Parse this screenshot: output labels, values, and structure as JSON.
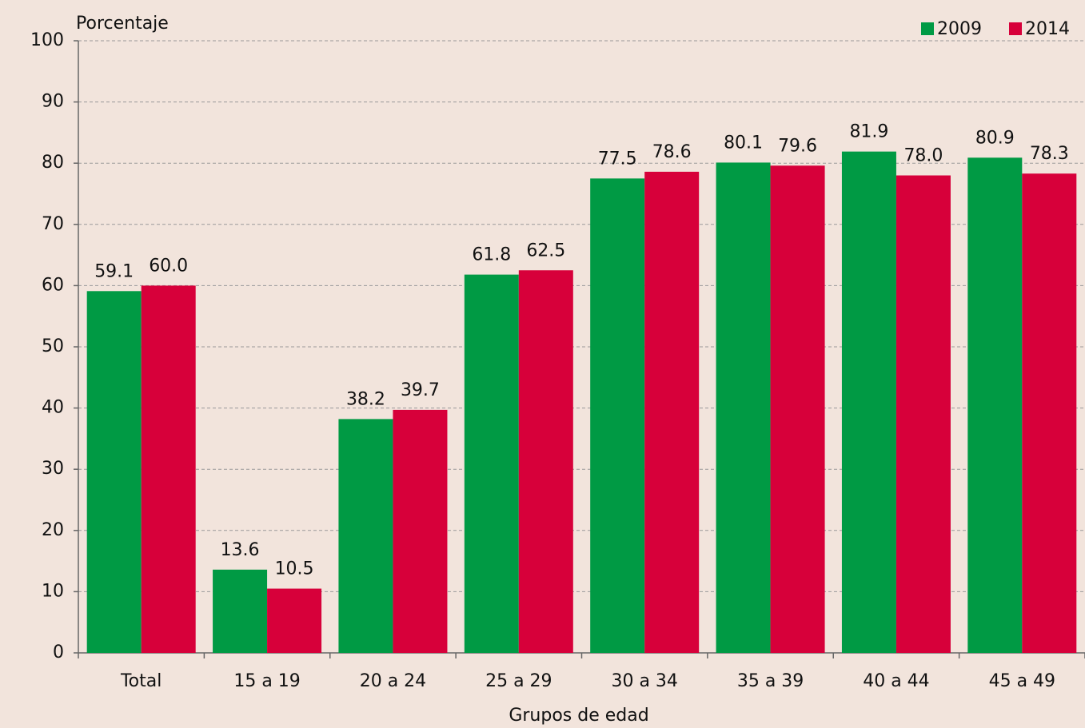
{
  "chart_data": {
    "type": "bar",
    "ylabel": "Porcentaje",
    "xlabel": "Grupos de edad",
    "categories": [
      "Total",
      "15 a 19",
      "20 a 24",
      "25 a 29",
      "30 a 34",
      "35 a 39",
      "40 a 44",
      "45 a 49"
    ],
    "series": [
      {
        "name": "2009",
        "color": "#009a44",
        "values": [
          59.1,
          13.6,
          38.2,
          61.8,
          77.5,
          80.1,
          81.9,
          80.9
        ],
        "value_labels": [
          "59.1",
          "13.6",
          "38.2",
          "61.8",
          "77.5",
          "80.1",
          "81.9",
          "80.9"
        ]
      },
      {
        "name": "2014",
        "color": "#d7003a",
        "values": [
          60.0,
          10.5,
          39.7,
          62.5,
          78.6,
          79.6,
          78.0,
          78.3
        ],
        "value_labels": [
          "60.0",
          "10.5",
          "39.7",
          "62.5",
          "78.6",
          "79.6",
          "78.0",
          "78.3"
        ]
      }
    ],
    "ylim": [
      0,
      100
    ],
    "yticks": [
      0,
      10,
      20,
      30,
      40,
      50,
      60,
      70,
      80,
      90,
      100
    ],
    "grid": true,
    "legend": "top-right"
  }
}
